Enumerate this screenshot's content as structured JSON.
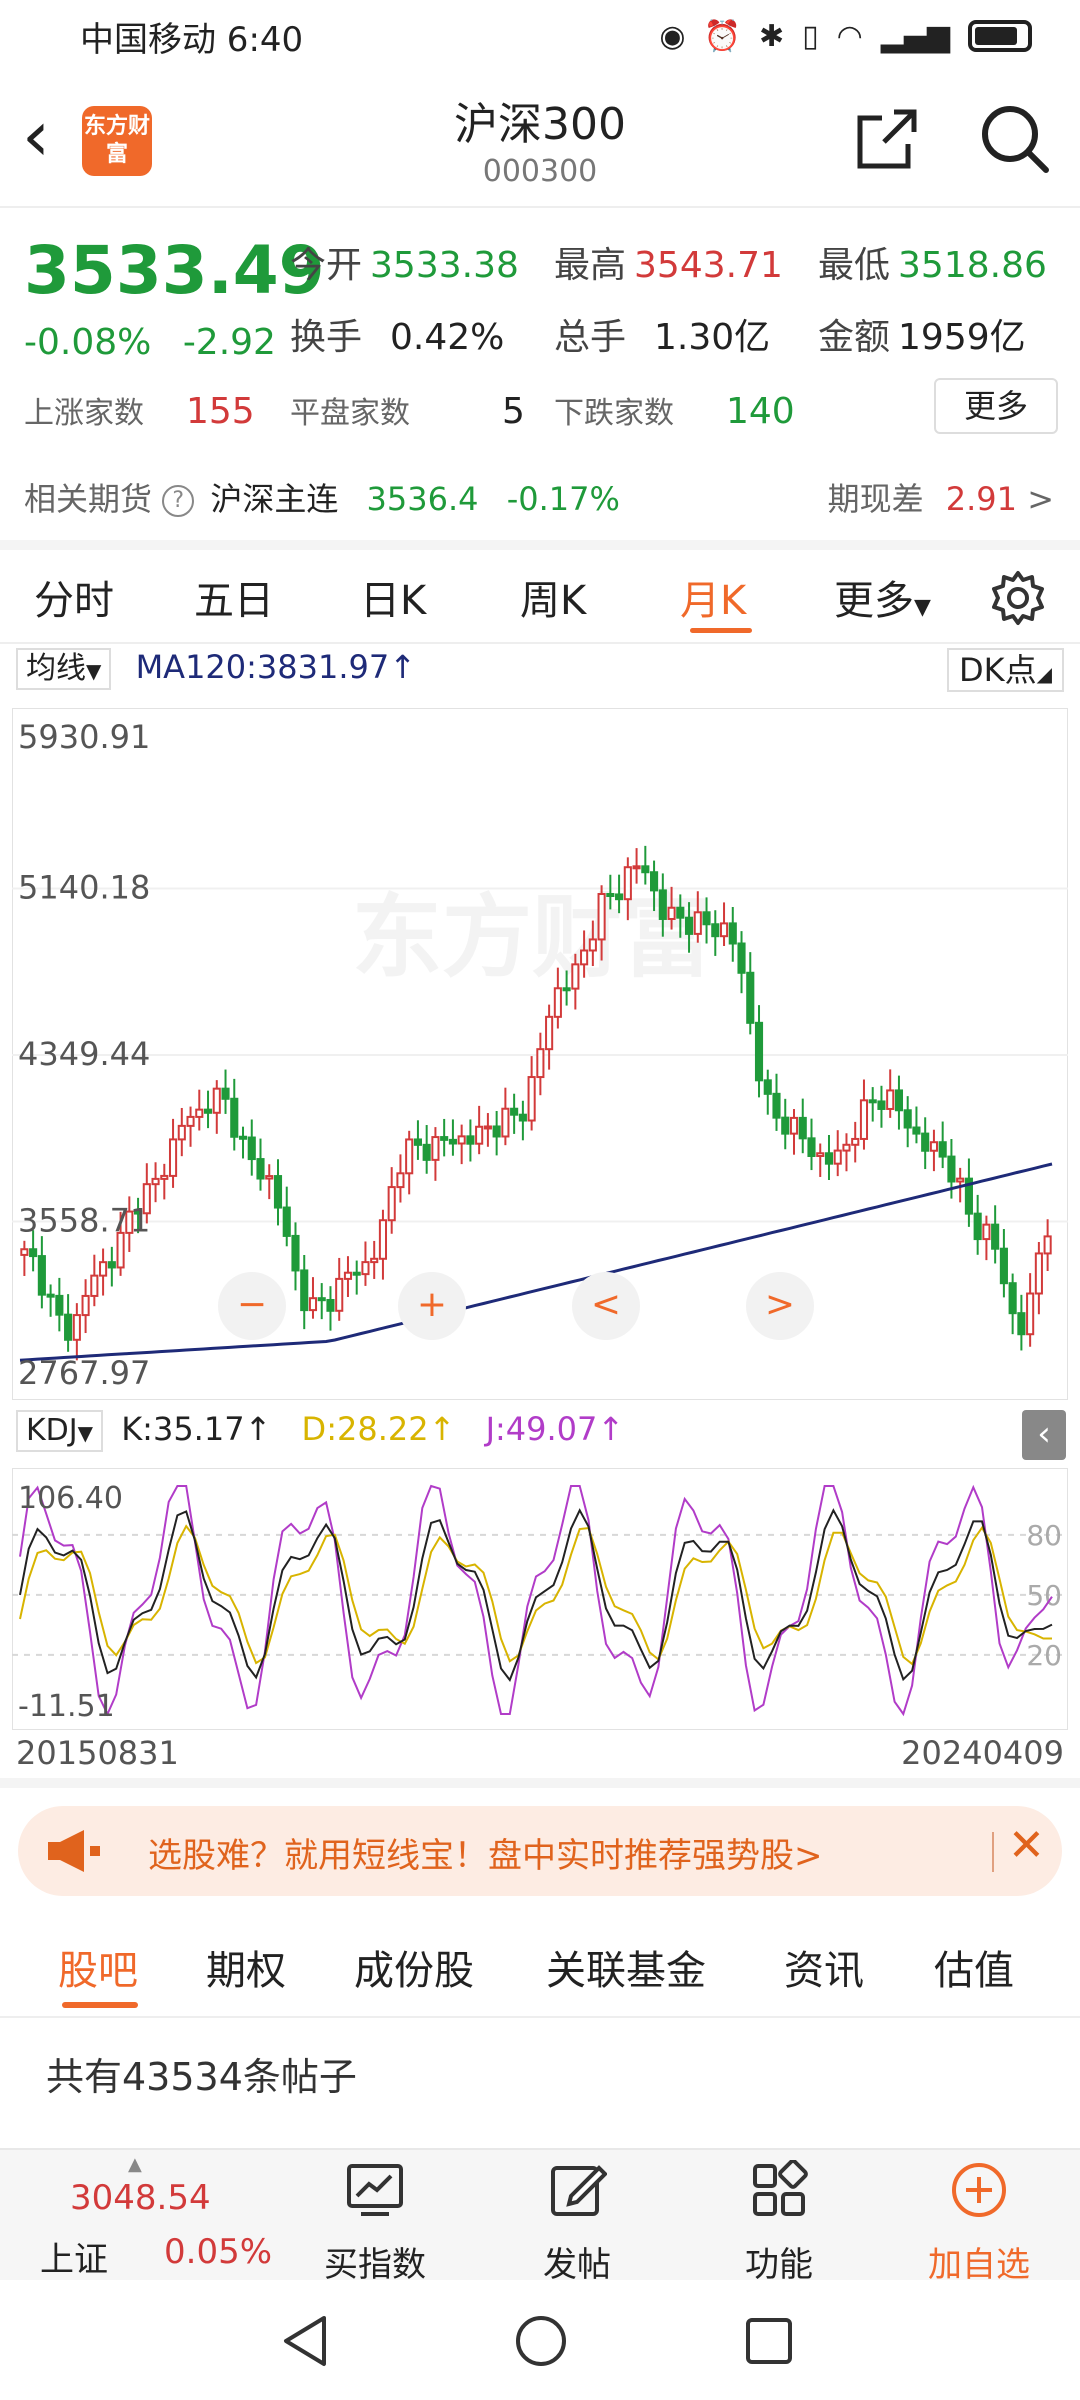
{
  "status_bar": {
    "carrier_time": "中国移动 6:40"
  },
  "header": {
    "logo_text": "东方财富",
    "title": "沪深300",
    "code": "000300"
  },
  "quote": {
    "price": "3533.49",
    "change_pct": "-0.08%",
    "change": "-2.92",
    "open_label": "今开",
    "open": "3533.38",
    "high_label": "最高",
    "high": "3543.71",
    "low_label": "最低",
    "low": "3518.86",
    "turnover_label": "换手",
    "turnover": "0.42%",
    "volume_label": "总手",
    "volume": "1.30亿",
    "amount_label": "金额",
    "amount": "1959亿",
    "up_label": "上涨家数",
    "up": "155",
    "flat_label": "平盘家数",
    "flat": "5",
    "down_label": "下跌家数",
    "down": "140",
    "more_label": "更多"
  },
  "futures": {
    "label": "相关期货",
    "help": "?",
    "name": "沪深主连",
    "price": "3536.4",
    "pct": "-0.17%",
    "basis_label": "期现差",
    "basis": "2.91",
    "arrow": ">"
  },
  "chart_tabs": [
    "分时",
    "五日",
    "日K",
    "周K",
    "月K",
    "更多"
  ],
  "chart_tab_active": "月K",
  "ma": {
    "selector": "均线",
    "value": "MA120:3831.97",
    "dk": "DK点"
  },
  "kdj": {
    "selector": "KDJ",
    "k": "K:35.17",
    "d": "D:28.22",
    "j": "J:49.07"
  },
  "chart_data": [
    {
      "type": "candlestick",
      "y_ticks": [
        "5930.91",
        "5140.18",
        "4349.44",
        "3558.71",
        "2767.97"
      ],
      "ylim": [
        2767.97,
        5930.91
      ],
      "ma120_last": 3831.97,
      "watermark": "东方财富",
      "controls": [
        "−",
        "+",
        "<",
        ">"
      ],
      "start": "20150831",
      "end": "20240409"
    },
    {
      "type": "line",
      "title": "KDJ",
      "y_ticks": [
        "106.40",
        "-11.51"
      ],
      "ref_lines": [
        "80",
        "50",
        "20"
      ],
      "series": [
        {
          "name": "K",
          "last": 35.17,
          "color": "#222222"
        },
        {
          "name": "D",
          "last": 28.22,
          "color": "#d8b400"
        },
        {
          "name": "J",
          "last": 49.07,
          "color": "#b13cc8"
        }
      ]
    }
  ],
  "dates": {
    "start": "20150831",
    "end": "20240409"
  },
  "banner": {
    "text": "选股难？就用短线宝！盘中实时推荐强势股>",
    "close": "✕"
  },
  "bottom_tabs": [
    "股吧",
    "期权",
    "成份股",
    "关联基金",
    "资讯",
    "估值"
  ],
  "bottom_tab_active": "股吧",
  "posts": "共有43534条帖子",
  "toolbar": {
    "index_value": "3048.54",
    "index_name": "上证",
    "index_pct": "0.05%",
    "buy_index": "买指数",
    "post": "发帖",
    "function": "功能",
    "add_watch": "加自选"
  },
  "colors": {
    "accent": "#f0692a",
    "up": "#d23a3a",
    "down": "#1f9a3a",
    "ma": "#1e2a78"
  }
}
